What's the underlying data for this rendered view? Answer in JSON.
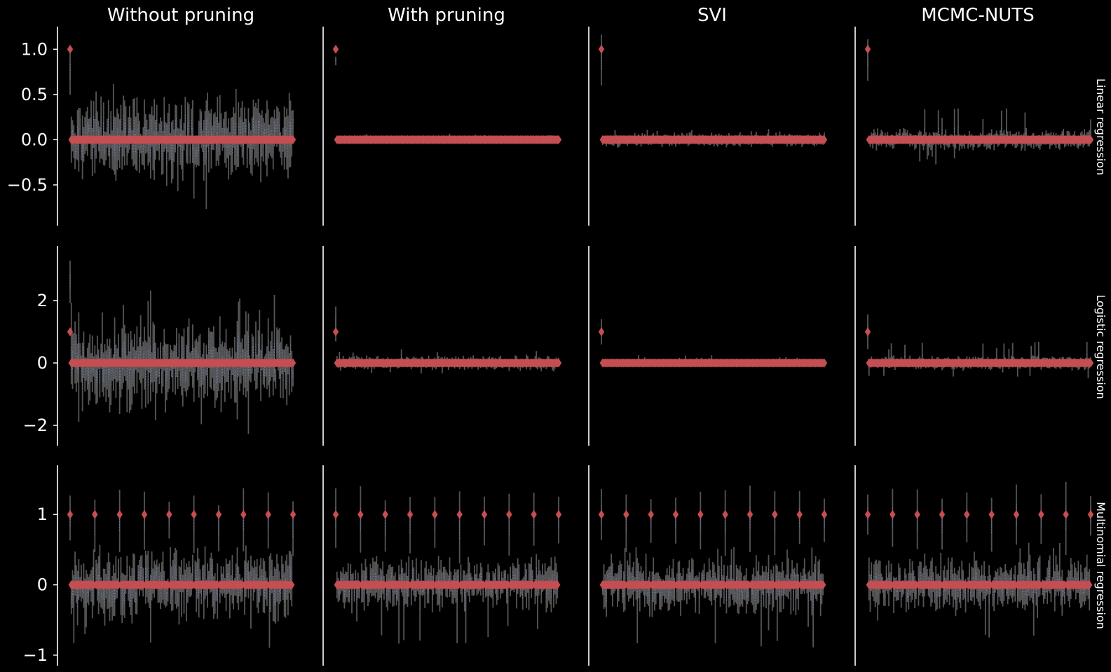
{
  "figure": {
    "column_titles": [
      "Without pruning",
      "With pruning",
      "SVI",
      "MCMC-NUTS"
    ],
    "row_labels": [
      "Linear regression",
      "Logistic regression",
      "Multinomial regression"
    ]
  },
  "colors": {
    "background": "#000000",
    "violin": "#555555",
    "violin_inner": "#6f7f9f",
    "true_value_marker": "#c44e52",
    "axis": "#ffffff",
    "text": "#ffffff"
  },
  "chart_data": {
    "type": "violin",
    "grid": false,
    "legend": "none",
    "sharey": "row",
    "n_coefficients": 181,
    "true_value_marker": "diamond",
    "rows": [
      {
        "label": "Linear regression",
        "ylim": [
          -0.95,
          1.25
        ],
        "yticks": [
          -0.5,
          0.0,
          0.5,
          1.0
        ],
        "ytick_labels": [
          "−0.5",
          "0.0",
          "0.5",
          "1.0"
        ],
        "nonzero_positions": [
          0
        ],
        "true_values": {
          "nonzero": 1.0,
          "zero": 0.0
        },
        "panels": [
          {
            "title": "Without pruning",
            "first_coef_center": 0.75,
            "first_coef_halfrange": 0.2,
            "noise_spread": 0.25,
            "peak_low": -0.85,
            "peak_high": 0.7
          },
          {
            "title": "With pruning",
            "first_coef_center": 0.87,
            "first_coef_halfrange": 0.05,
            "noise_spread": 0.02,
            "peak_low": -0.02,
            "peak_high": 0.07
          },
          {
            "title": "SVI",
            "first_coef_center": 0.88,
            "first_coef_halfrange": 0.27,
            "noise_spread": 0.04,
            "peak_low": -0.08,
            "peak_high": 0.12
          },
          {
            "title": "MCMC-NUTS",
            "first_coef_center": 0.88,
            "first_coef_halfrange": 0.22,
            "noise_spread": 0.06,
            "peak_low": -0.28,
            "peak_high": 0.35
          }
        ]
      },
      {
        "label": "Logistic regression",
        "ylim": [
          -2.65,
          3.75
        ],
        "yticks": [
          -2,
          0,
          2
        ],
        "ytick_labels": [
          "−2",
          "0",
          "2"
        ],
        "nonzero_positions": [
          0
        ],
        "true_values": {
          "nonzero": 1.0,
          "zero": 0.0
        },
        "panels": [
          {
            "title": "Without pruning",
            "first_coef_center": 2.6,
            "first_coef_halfrange": 0.8,
            "noise_spread": 0.75,
            "peak_low": -2.3,
            "peak_high": 2.5
          },
          {
            "title": "With pruning",
            "first_coef_center": 1.25,
            "first_coef_halfrange": 0.5,
            "noise_spread": 0.12,
            "peak_low": -0.35,
            "peak_high": 0.45
          },
          {
            "title": "SVI",
            "first_coef_center": 1.0,
            "first_coef_halfrange": 0.5,
            "noise_spread": 0.03,
            "peak_low": -0.08,
            "peak_high": 0.25
          },
          {
            "title": "MCMC-NUTS",
            "first_coef_center": 1.0,
            "first_coef_halfrange": 0.45,
            "noise_spread": 0.12,
            "peak_low": -0.5,
            "peak_high": 0.7
          }
        ]
      },
      {
        "label": "Multinomial regression",
        "ylim": [
          -1.15,
          1.7
        ],
        "yticks": [
          -1,
          0,
          1
        ],
        "ytick_labels": [
          "−1",
          "0",
          "1"
        ],
        "nonzero_positions": [
          0,
          20,
          40,
          60,
          80,
          100,
          120,
          140,
          160,
          180
        ],
        "true_values": {
          "nonzero": 1.0,
          "zero": 0.0
        },
        "panels": [
          {
            "title": "Without pruning",
            "first_coef_center": 0.95,
            "first_coef_halfrange": 0.35,
            "noise_spread": 0.28,
            "peak_low": -0.95,
            "peak_high": 0.5
          },
          {
            "title": "With pruning",
            "first_coef_center": 0.95,
            "first_coef_halfrange": 0.4,
            "noise_spread": 0.2,
            "peak_low": -0.85,
            "peak_high": 0.45
          },
          {
            "title": "SVI",
            "first_coef_center": 1.0,
            "first_coef_halfrange": 0.4,
            "noise_spread": 0.22,
            "peak_low": -0.9,
            "peak_high": 0.6
          },
          {
            "title": "MCMC-NUTS",
            "first_coef_center": 1.0,
            "first_coef_halfrange": 0.4,
            "noise_spread": 0.22,
            "peak_low": -0.75,
            "peak_high": 0.6
          }
        ]
      }
    ]
  }
}
